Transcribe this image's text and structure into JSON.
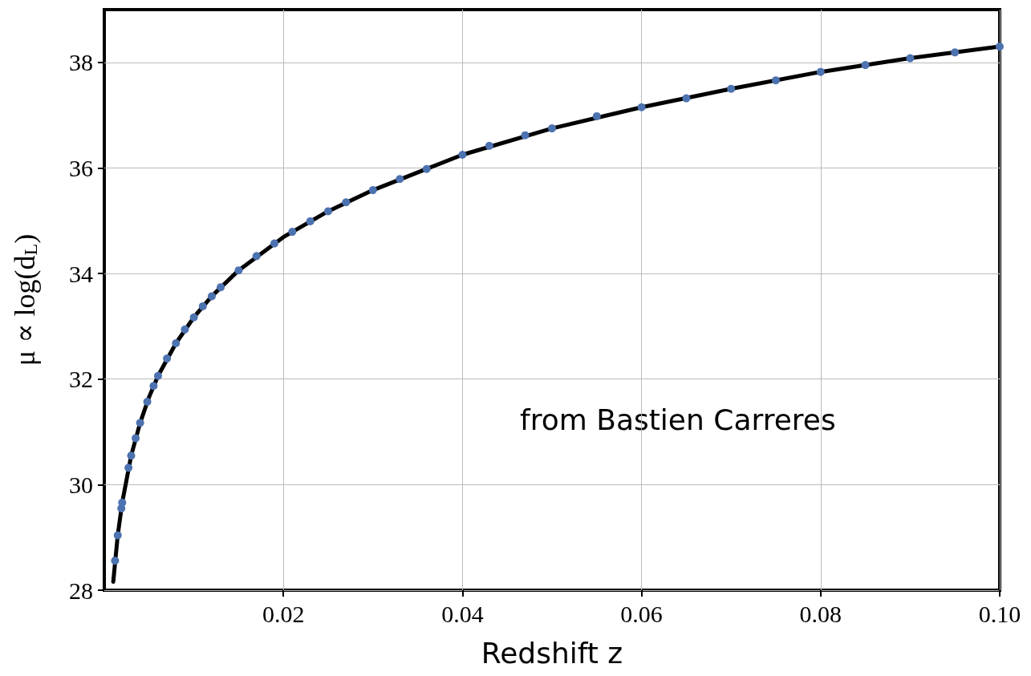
{
  "chart_data": {
    "type": "line",
    "xlabel": "Redshift z",
    "ylabel": "μ ∝ log(d$_{L}$)",
    "annotations": [
      "from Bastien Carreres"
    ],
    "xlim": [
      0,
      0.1
    ],
    "xticks": [
      0.02,
      0.04,
      0.06,
      0.08,
      {
        "value": 0.1,
        "label": "0.10"
      }
    ],
    "ylim": [
      28,
      39
    ],
    "yticks": [
      28,
      30,
      32,
      34,
      36,
      38
    ],
    "grid": true,
    "series": [
      {
        "color": "#000000",
        "marker": "none",
        "line_style": "solid",
        "x": [
          0.001,
          0.0015,
          0.002,
          0.003,
          0.004,
          0.005,
          0.006,
          0.008,
          0.01,
          0.012,
          0.015,
          0.02,
          0.025,
          0.03,
          0.04,
          0.05,
          0.06,
          0.07,
          0.08,
          0.09,
          0.1
        ],
        "values": [
          28.16,
          29.04,
          29.66,
          30.55,
          31.17,
          31.66,
          32.06,
          32.68,
          33.17,
          33.57,
          34.06,
          34.69,
          35.18,
          35.58,
          36.25,
          36.75,
          37.15,
          37.5,
          37.82,
          38.08,
          38.3
        ]
      },
      {
        "type": "scatter",
        "color": "#4c72b0",
        "marker": "circle",
        "x": [
          0.0012,
          0.0015,
          0.0019,
          0.002,
          0.0027,
          0.003,
          0.0035,
          0.004,
          0.0048,
          0.0055,
          0.006,
          0.007,
          0.008,
          0.009,
          0.01,
          0.011,
          0.012,
          0.013,
          0.015,
          0.017,
          0.019,
          0.021,
          0.023,
          0.025,
          0.027,
          0.03,
          0.033,
          0.036,
          0.04,
          0.043,
          0.047,
          0.05,
          0.055,
          0.06,
          0.065,
          0.07,
          0.075,
          0.08,
          0.085,
          0.09,
          0.095,
          0.1
        ],
        "values": [
          28.56,
          29.04,
          29.55,
          29.66,
          30.32,
          30.55,
          30.88,
          31.17,
          31.57,
          31.87,
          32.06,
          32.39,
          32.68,
          32.94,
          33.17,
          33.38,
          33.57,
          33.74,
          34.06,
          34.33,
          34.57,
          34.79,
          34.99,
          35.18,
          35.35,
          35.58,
          35.79,
          35.98,
          36.25,
          36.42,
          36.62,
          36.75,
          36.98,
          37.15,
          37.32,
          37.5,
          37.66,
          37.82,
          37.95,
          38.08,
          38.19,
          38.3
        ]
      }
    ]
  }
}
